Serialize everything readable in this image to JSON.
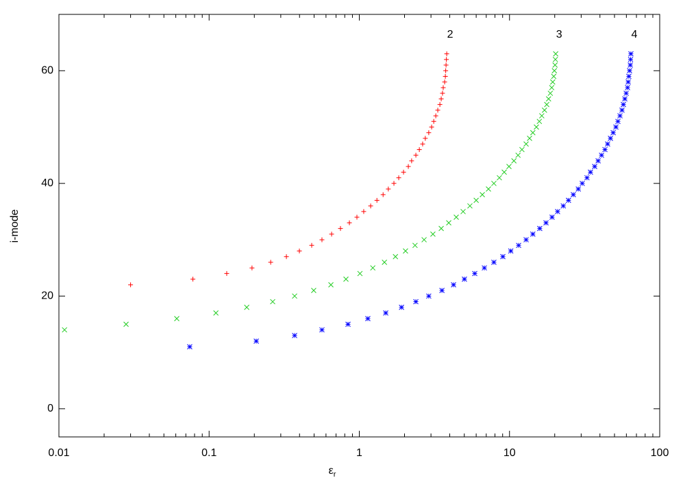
{
  "chart_data": {
    "type": "scatter",
    "xlabel": "ε",
    "xlabel_sub": "r",
    "ylabel": "i-mode",
    "xlog": true,
    "xminor": true,
    "xlim": [
      0.01,
      100
    ],
    "xticks": [
      0.01,
      0.1,
      1,
      10,
      100
    ],
    "ylim": [
      -5,
      70
    ],
    "yticks": [
      0,
      20,
      40,
      60
    ],
    "series": [
      {
        "name": "2",
        "color": "#ff0000",
        "marker": "plus",
        "x": [
          0.03,
          0.078,
          0.131,
          0.193,
          0.257,
          0.327,
          0.399,
          0.482,
          0.564,
          0.654,
          0.749,
          0.859,
          0.964,
          1.07,
          1.19,
          1.31,
          1.44,
          1.56,
          1.7,
          1.83,
          1.97,
          2.12,
          2.23,
          2.38,
          2.51,
          2.64,
          2.75,
          2.9,
          3.03,
          3.13,
          3.23,
          3.33,
          3.44,
          3.51,
          3.58,
          3.62,
          3.7,
          3.74,
          3.76,
          3.78,
          3.8,
          3.82
        ],
        "values": [
          22,
          23,
          24,
          25,
          26,
          27,
          28,
          29,
          30,
          31,
          32,
          33,
          34,
          35,
          36,
          37,
          38,
          39,
          40,
          41,
          42,
          43,
          44,
          45,
          46,
          47,
          48,
          49,
          50,
          51,
          52,
          53,
          54,
          55,
          56,
          57,
          58,
          59,
          60,
          61,
          62,
          63
        ]
      },
      {
        "name": "3",
        "color": "#22cc22",
        "marker": "cross",
        "x": [
          0.0109,
          0.028,
          0.0609,
          0.111,
          0.178,
          0.265,
          0.371,
          0.497,
          0.647,
          0.815,
          1.01,
          1.23,
          1.47,
          1.74,
          2.03,
          2.35,
          2.7,
          3.09,
          3.51,
          3.94,
          4.42,
          4.91,
          5.45,
          6.0,
          6.59,
          7.24,
          7.87,
          8.56,
          9.22,
          9.92,
          10.7,
          11.4,
          12.1,
          12.9,
          13.6,
          14.3,
          15.1,
          15.8,
          16.4,
          17.1,
          17.7,
          18.2,
          18.7,
          19.1,
          19.4,
          19.7,
          19.9,
          20.1,
          20.2,
          20.3
        ],
        "values": [
          14,
          15,
          16,
          17,
          18,
          19,
          20,
          21,
          22,
          23,
          24,
          25,
          26,
          27,
          28,
          29,
          30,
          31,
          32,
          33,
          34,
          35,
          36,
          37,
          38,
          39,
          40,
          41,
          42,
          43,
          44,
          45,
          46,
          47,
          48,
          49,
          50,
          51,
          52,
          53,
          54,
          55,
          56,
          57,
          58,
          59,
          60,
          61,
          62,
          63
        ]
      },
      {
        "name": "4",
        "color": "#0000ff",
        "marker": "star",
        "x": [
          0.0743,
          0.206,
          0.371,
          0.564,
          0.841,
          1.14,
          1.5,
          1.91,
          2.38,
          2.9,
          3.55,
          4.24,
          5.01,
          5.87,
          6.8,
          7.87,
          9.03,
          10.2,
          11.5,
          12.9,
          14.3,
          15.9,
          17.5,
          19.2,
          20.9,
          22.8,
          24.7,
          26.6,
          28.7,
          30.5,
          32.8,
          34.6,
          36.9,
          38.9,
          41.0,
          43.2,
          45.0,
          47.0,
          49.0,
          51.1,
          52.7,
          54.4,
          56.1,
          57.3,
          58.6,
          59.8,
          61.1,
          61.7,
          62.3,
          63.0,
          63.7,
          64.0,
          64.3
        ],
        "values": [
          11,
          12,
          13,
          14,
          15,
          16,
          17,
          18,
          19,
          20,
          21,
          22,
          23,
          24,
          25,
          26,
          27,
          28,
          29,
          30,
          31,
          32,
          33,
          34,
          35,
          36,
          37,
          38,
          39,
          40,
          41,
          42,
          43,
          44,
          45,
          46,
          47,
          48,
          49,
          50,
          51,
          52,
          53,
          54,
          55,
          56,
          57,
          58,
          59,
          60,
          61,
          62,
          63
        ]
      }
    ]
  }
}
